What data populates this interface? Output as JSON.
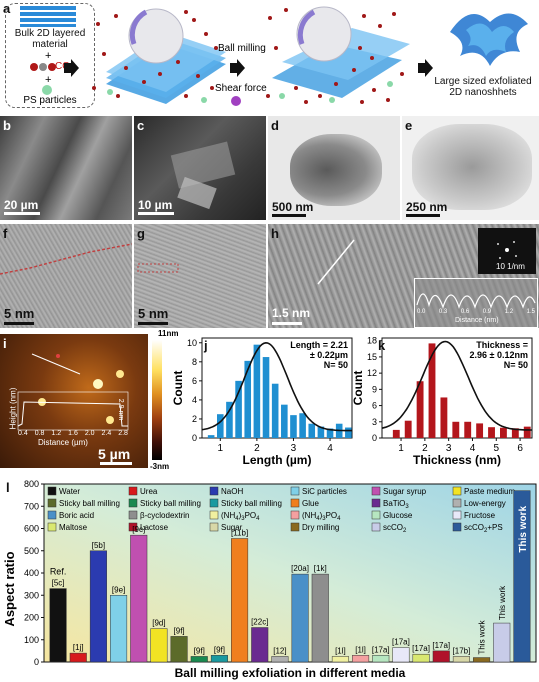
{
  "panel_a": {
    "label": "a",
    "bulk_label": "Bulk 2D layered material",
    "plus": "+",
    "co2": "CO",
    "co2_sub": "2",
    "plus2": "+",
    "ps_label": "PS particles",
    "ball_milling": "Ball milling",
    "shear_force": "Shear force",
    "result_label": "Large sized exfoliated 2D nanoshhets"
  },
  "panels_bcd": {
    "b": {
      "label": "b",
      "scale": "20 µm"
    },
    "c": {
      "label": "c",
      "scale": "10 µm"
    },
    "d": {
      "label": "d",
      "scale": "500 nm"
    },
    "e": {
      "label": "e",
      "scale": "250 nm"
    }
  },
  "panels_fgh": {
    "f": {
      "label": "f",
      "scale": "5 nm"
    },
    "g": {
      "label": "g",
      "scale": "5 nm"
    },
    "h": {
      "label": "h",
      "scale": "1.5 nm",
      "saed_scale": "10 1/nm",
      "profile_xlabel": "Distance (nm)",
      "profile_ticks": [
        "0.0",
        "0.3",
        "0.6",
        "0.9",
        "1.2",
        "1.5"
      ]
    }
  },
  "panel_i": {
    "label": "i",
    "scale": "5 µm",
    "cbar_top": "11nm",
    "cbar_bottom": "-3nm",
    "ylabel": "Height (nm)",
    "xlabel": "Distance (µm)",
    "height_val": "2.9 nm",
    "xticks": [
      "0.4",
      "0.8",
      "1.2",
      "1.6",
      "2.0",
      "2.4",
      "2.8"
    ],
    "yticks": [
      "0",
      "2",
      "4"
    ]
  },
  "chart_data": [
    {
      "type": "bar",
      "panel": "j",
      "xlabel": "Length (µm)",
      "ylabel": "Count",
      "annotation": [
        "Length = 2.21",
        "± 0.22µm",
        "N= 50"
      ],
      "xlim": [
        0.5,
        4.6
      ],
      "ylim": [
        0,
        10.5
      ],
      "xticks": [
        1,
        2,
        3,
        4
      ],
      "yticks": [
        0,
        2,
        4,
        6,
        8,
        10
      ],
      "bar_width": 0.25,
      "x": [
        0.75,
        1.0,
        1.25,
        1.5,
        1.75,
        2.0,
        2.25,
        2.5,
        2.75,
        3.0,
        3.25,
        3.5,
        3.75,
        4.0,
        4.25,
        4.5
      ],
      "values": [
        0.3,
        2.5,
        3.8,
        6.0,
        8.1,
        9.8,
        8.5,
        5.7,
        3.5,
        2.4,
        2.6,
        1.5,
        1.2,
        1.0,
        1.5,
        1.1
      ],
      "fit": "gaussian",
      "color": "#1f8fd1"
    },
    {
      "type": "bar",
      "panel": "k",
      "xlabel": "Thickness (nm)",
      "ylabel": "Count",
      "annotation": [
        "Thickness =",
        "2.96 ± 0.12nm",
        "N= 50"
      ],
      "xlim": [
        0.2,
        6.5
      ],
      "ylim": [
        0,
        18.5
      ],
      "xticks": [
        1,
        2,
        3,
        4,
        5,
        6
      ],
      "yticks": [
        0,
        3,
        6,
        9,
        12,
        15,
        18
      ],
      "bar_width": 0.4,
      "x": [
        0.8,
        1.3,
        1.8,
        2.3,
        2.8,
        3.3,
        3.8,
        4.3,
        4.8,
        5.3,
        5.8,
        6.3
      ],
      "values": [
        1.5,
        3.2,
        10.5,
        17.5,
        7.5,
        3.0,
        3.0,
        2.7,
        2.0,
        1.9,
        1.8,
        2.1
      ],
      "fit": "gaussian",
      "color": "#b3161c"
    },
    {
      "type": "bar",
      "panel": "l",
      "ylabel": "Aspect ratio",
      "xlabel": "Ball milling exfoliation in different media",
      "ylim": [
        0,
        800
      ],
      "yticks": [
        0,
        100,
        200,
        300,
        400,
        500,
        600,
        700,
        800
      ],
      "bars": [
        {
          "label": "[5c]",
          "value": 330,
          "color": "#111111",
          "extra": "Ref."
        },
        {
          "label": "[1j]",
          "value": 40,
          "color": "#d7191c"
        },
        {
          "label": "[5b]",
          "value": 500,
          "color": "#2b3bb0"
        },
        {
          "label": "[9e]",
          "value": 300,
          "color": "#7fd0e8"
        },
        {
          "label": "[9c]",
          "value": 570,
          "color": "#c050b0"
        },
        {
          "label": "[9d]",
          "value": 150,
          "color": "#f2e324"
        },
        {
          "label": "[9f]",
          "value": 115,
          "color": "#5c6b2a"
        },
        {
          "label": "[9f]",
          "value": 25,
          "color": "#1a8a50"
        },
        {
          "label": "[9f]",
          "value": 30,
          "color": "#1a9aa0"
        },
        {
          "label": "[11b]",
          "value": 555,
          "color": "#f07f1e"
        },
        {
          "label": "[22c]",
          "value": 155,
          "color": "#6a2a90"
        },
        {
          "label": "[12]",
          "value": 25,
          "color": "#b0b0b0"
        },
        {
          "label": "[20a]",
          "value": 395,
          "color": "#4a90c8"
        },
        {
          "label": "[1k]",
          "value": 395,
          "color": "#8e8e8e"
        },
        {
          "label": "[1l]",
          "value": 25,
          "color": "#f0f0a0"
        },
        {
          "label": "[1l]",
          "value": 30,
          "color": "#f4a0a0"
        },
        {
          "label": "[17a]",
          "value": 30,
          "color": "#b6e6c0"
        },
        {
          "label": "[17a]",
          "value": 65,
          "color": "#e8e8f8"
        },
        {
          "label": "[17a]",
          "value": 35,
          "color": "#d9e870"
        },
        {
          "label": "[17a]",
          "value": 50,
          "color": "#b0122a"
        },
        {
          "label": "[17b]",
          "value": 25,
          "color": "#d8d8a8"
        },
        {
          "label": "This work",
          "value": 20,
          "color": "#8a6a20",
          "rotated": true
        },
        {
          "label": "This work",
          "value": 175,
          "color": "#c8cce8",
          "rotated": true
        },
        {
          "label": "This work",
          "value": 770,
          "color": "#2a5a9a",
          "rotated": true,
          "inside": true
        }
      ],
      "legend": [
        {
          "name": "Water",
          "color": "#111111"
        },
        {
          "name": "Urea",
          "color": "#d7191c"
        },
        {
          "name": "NaOH",
          "color": "#2b3bb0"
        },
        {
          "name": "SiC particles",
          "color": "#7fd0e8"
        },
        {
          "name": "Sugar syrup",
          "color": "#c050b0"
        },
        {
          "name": "Paste medium",
          "color": "#f2e324"
        },
        {
          "name": "Sticky ball milling",
          "color": "#5c6b2a"
        },
        {
          "name": "Sticky ball milling",
          "color": "#1a8a50"
        },
        {
          "name": "Sticky ball milling",
          "color": "#1a9aa0"
        },
        {
          "name": "Glue",
          "color": "#f07f1e"
        },
        {
          "name": "BaTiO",
          "sub": "3",
          "color": "#6a2a90"
        },
        {
          "name": "Low-energy",
          "color": "#b0b0b0"
        },
        {
          "name": "Boric acid",
          "color": "#4a90c8"
        },
        {
          "name": "β-cyclodextrin",
          "color": "#8e8e8e"
        },
        {
          "name": "(NH",
          "sub": "4",
          "tail": ")",
          "sub2": "3",
          "tail2": "PO",
          "sub3": "4",
          "color": "#f0f0a0"
        },
        {
          "name": "(NH",
          "sub": "4",
          "tail": ")",
          "sub2": "3",
          "tail2": "PO",
          "sub3": "4",
          "color": "#f4a0a0"
        },
        {
          "name": "Glucose",
          "color": "#b6e6c0"
        },
        {
          "name": "Fructose",
          "color": "#e8e8f8"
        },
        {
          "name": "Maltose",
          "color": "#d9e870"
        },
        {
          "name": "Lactose",
          "color": "#b0122a"
        },
        {
          "name": "Sugar",
          "color": "#d8d8a8"
        },
        {
          "name": "Dry milling",
          "color": "#8a6a20"
        },
        {
          "name": "scCO",
          "sub": "2",
          "color": "#c8cce8"
        },
        {
          "name": "scCO",
          "sub": "2",
          "tail": "+PS",
          "color": "#2a5a9a"
        }
      ]
    }
  ]
}
